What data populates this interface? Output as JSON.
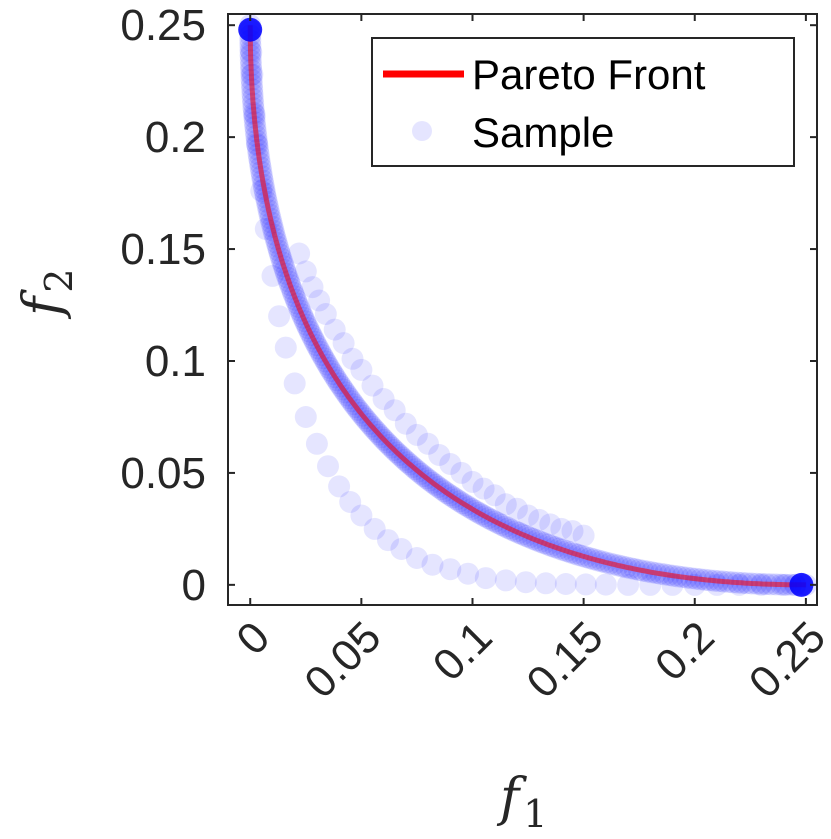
{
  "chart_data": {
    "type": "scatter",
    "xlabel": {
      "symbol": "f",
      "subscript": "1"
    },
    "ylabel": {
      "symbol": "f",
      "subscript": "2"
    },
    "xlim": [
      -0.01,
      0.255
    ],
    "ylim": [
      -0.009,
      0.255
    ],
    "xticks": [
      0,
      0.05,
      0.1,
      0.15,
      0.2,
      0.25
    ],
    "xtick_labels": [
      "0",
      "0.05",
      "0.1",
      "0.15",
      "0.2",
      "0.25"
    ],
    "yticks": [
      0,
      0.05,
      0.1,
      0.15,
      0.2,
      0.25
    ],
    "ytick_labels": [
      "0",
      "0.05",
      "0.1",
      "0.15",
      "0.2",
      "0.25"
    ],
    "grid": false,
    "legend_position": "top-right",
    "series": [
      {
        "name": "Pareto Front",
        "kind": "line",
        "color": "#ff0000",
        "function": "f2 = (0.5 - sqrt(f1))^2",
        "x_range": [
          0,
          0.25
        ]
      },
      {
        "name": "Sample",
        "kind": "scatter",
        "color": "#0000ff",
        "opacity": 0.1,
        "x": [
          0,
          0.0005,
          0.001,
          0.002,
          0.003,
          0.005,
          0.007,
          0.01,
          0.013,
          0.016,
          0.02,
          0.025,
          0.03,
          0.035,
          0.04,
          0.045,
          0.05,
          0.056,
          0.062,
          0.068,
          0.075,
          0.082,
          0.09,
          0.098,
          0.106,
          0.115,
          0.124,
          0.133,
          0.142,
          0.151,
          0.16,
          0.17,
          0.18,
          0.19,
          0.2,
          0.21,
          0.22,
          0.23,
          0.24,
          0.245,
          0.248,
          0.022,
          0.025,
          0.028,
          0.031,
          0.034,
          0.038,
          0.042,
          0.046,
          0.05,
          0.055,
          0.06,
          0.065,
          0.07,
          0.075,
          0.08,
          0.085,
          0.09,
          0.095,
          0.1,
          0.105,
          0.11,
          0.115,
          0.12,
          0.125,
          0.13,
          0.135,
          0.14,
          0.145,
          0.15
        ],
        "y": [
          0.248,
          0.238,
          0.228,
          0.21,
          0.197,
          0.176,
          0.159,
          0.138,
          0.12,
          0.106,
          0.09,
          0.075,
          0.063,
          0.053,
          0.044,
          0.037,
          0.031,
          0.025,
          0.02,
          0.016,
          0.012,
          0.009,
          0.007,
          0.005,
          0.003,
          0.002,
          0.0012,
          0.0007,
          0.0004,
          0.0002,
          0.0001,
          0,
          0,
          0,
          0,
          0,
          0,
          0,
          0,
          0,
          0,
          0.148,
          0.14,
          0.133,
          0.127,
          0.121,
          0.114,
          0.108,
          0.101,
          0.096,
          0.089,
          0.083,
          0.078,
          0.072,
          0.067,
          0.063,
          0.058,
          0.054,
          0.05,
          0.046,
          0.043,
          0.04,
          0.036,
          0.034,
          0.031,
          0.029,
          0.027,
          0.025,
          0.024,
          0.022
        ]
      },
      {
        "name": "",
        "kind": "endpoints",
        "color": "#0000ff",
        "opacity": 0.85,
        "x": [
          0,
          0.248
        ],
        "y": [
          0.248,
          0
        ]
      }
    ]
  }
}
